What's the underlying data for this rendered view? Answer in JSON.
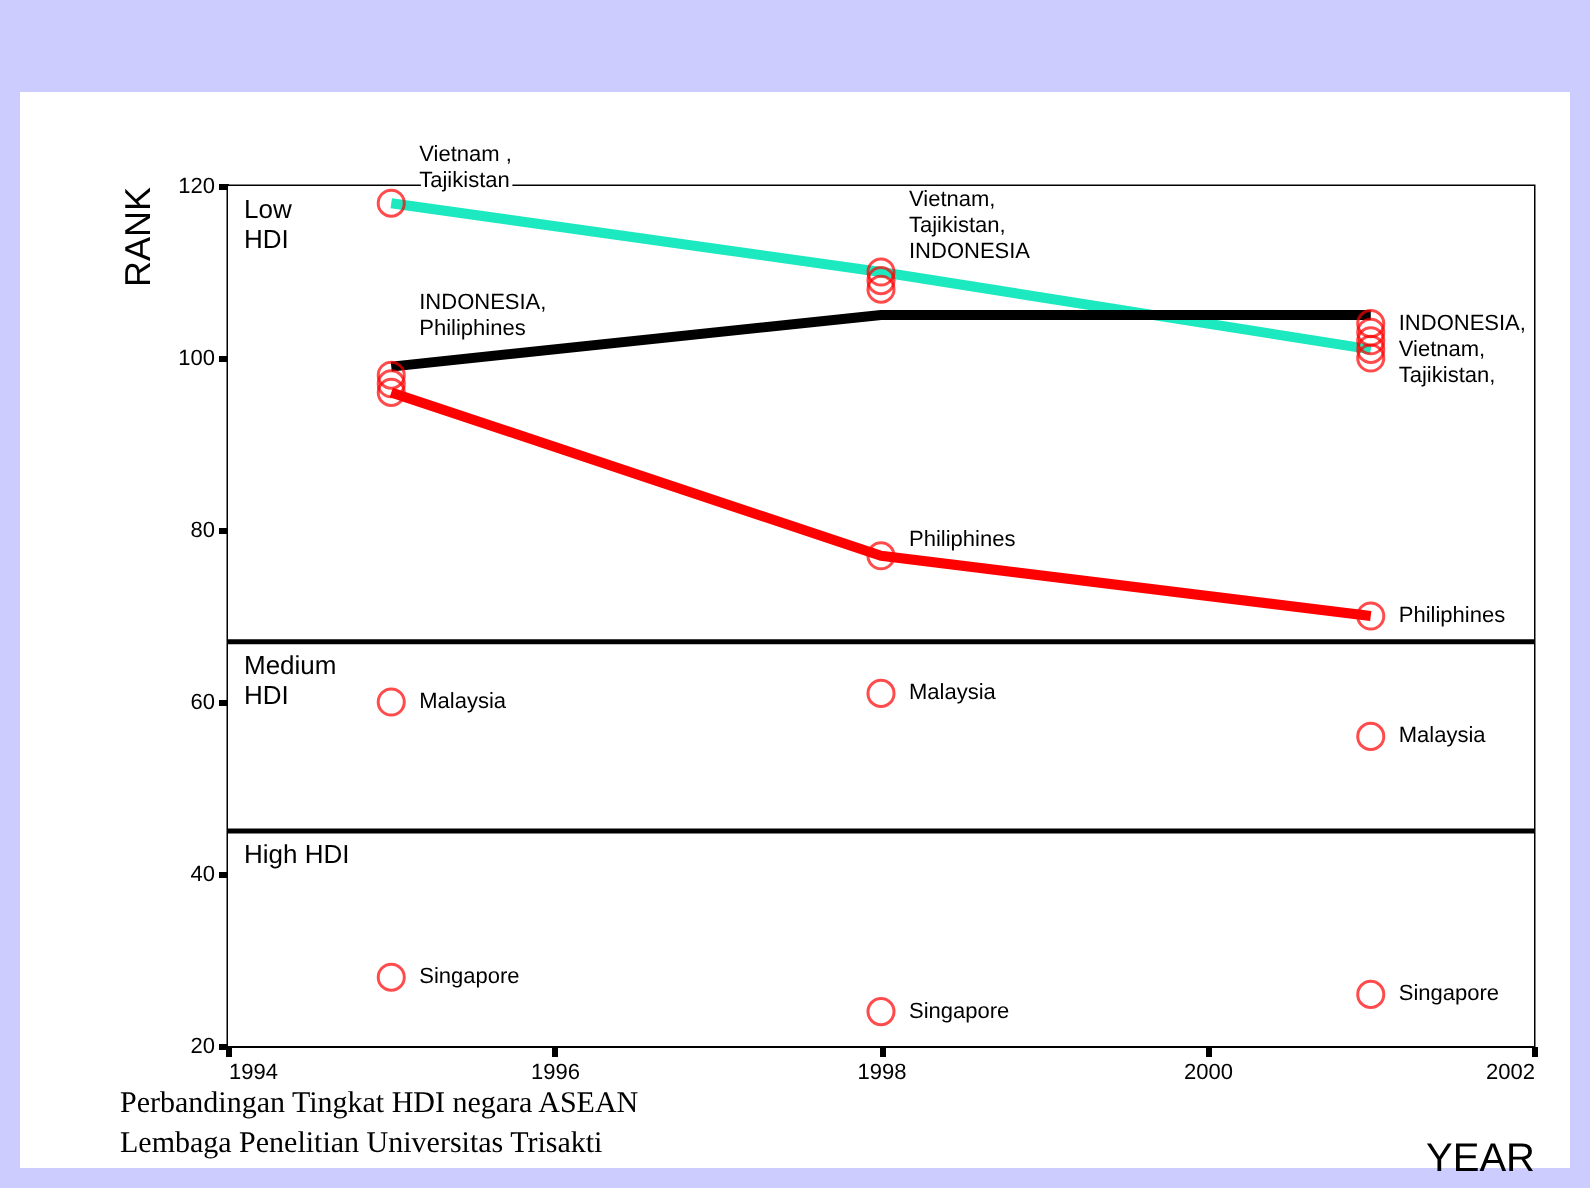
{
  "chart_data": {
    "type": "scatter",
    "xlabel": "YEAR",
    "ylabel": "RANK",
    "xlim": [
      1994,
      2002
    ],
    "xticks": [
      1994,
      1996,
      1998,
      2000,
      2002
    ],
    "ylim": [
      20,
      120
    ],
    "yticks": [
      20,
      40,
      60,
      80,
      100,
      120
    ],
    "grid": false,
    "marker": "circle",
    "line_style": "solid",
    "series": [
      {
        "color": "#ff0000",
        "x": [
          1995,
          1995,
          1995,
          1995,
          1995,
          1995,
          1998,
          1998,
          1998,
          1998,
          1998,
          1998,
          2001,
          2001,
          2001,
          2001,
          2001,
          2001,
          2001,
          2001
        ],
        "values": [
          118,
          98,
          97,
          96,
          60,
          28,
          110,
          109,
          108,
          77,
          61,
          24,
          104,
          103,
          102,
          101,
          70,
          56,
          26,
          100
        ],
        "value_labels": [
          "Vietnam ,\nTajikistan",
          "INDONESIA,\nPhiliphines",
          null,
          null,
          "Malaysia",
          "Singapore",
          "Vietnam,\nTajikistan,\nINDONESIA",
          null,
          null,
          "Philiphines",
          "Malaysia",
          "Singapore",
          "INDONESIA,\nVietnam,\nTajikistan,",
          null,
          null,
          null,
          "Philiphines",
          "Malaysia",
          "Singapore",
          null
        ]
      },
      {
        "type": "line",
        "marker": "none",
        "color": "#1de9c0",
        "x": [
          1995,
          1998,
          2001
        ],
        "values": [
          118,
          110,
          101
        ]
      },
      {
        "type": "line",
        "marker": "none",
        "color": "#000000",
        "x": [
          1995,
          1998,
          2001
        ],
        "values": [
          99,
          105,
          105
        ]
      },
      {
        "type": "line",
        "marker": "none",
        "color": "#ff0000",
        "x": [
          1995,
          1998,
          2001
        ],
        "values": [
          96,
          77,
          70
        ]
      }
    ],
    "ref_lines": [
      {
        "axis": "y",
        "value": 67,
        "color": "#000000"
      },
      {
        "axis": "y",
        "value": 45,
        "color": "#000000"
      }
    ],
    "bands": [
      {
        "axis": "y",
        "from": 67,
        "to": 120,
        "label": "Low\nHDI",
        "color": "#ffffff"
      },
      {
        "axis": "y",
        "from": 45,
        "to": 67,
        "label": "Medium\nHDI",
        "color": "#ffffff"
      },
      {
        "axis": "y",
        "from": 20,
        "to": 45,
        "label": "High HDI",
        "color": "#ffffff"
      }
    ],
    "annotations": [
      "Perbandingan Tingkat HDI negara ASEAN",
      "Lembaga Penelitian Universitas Trisakti"
    ]
  }
}
